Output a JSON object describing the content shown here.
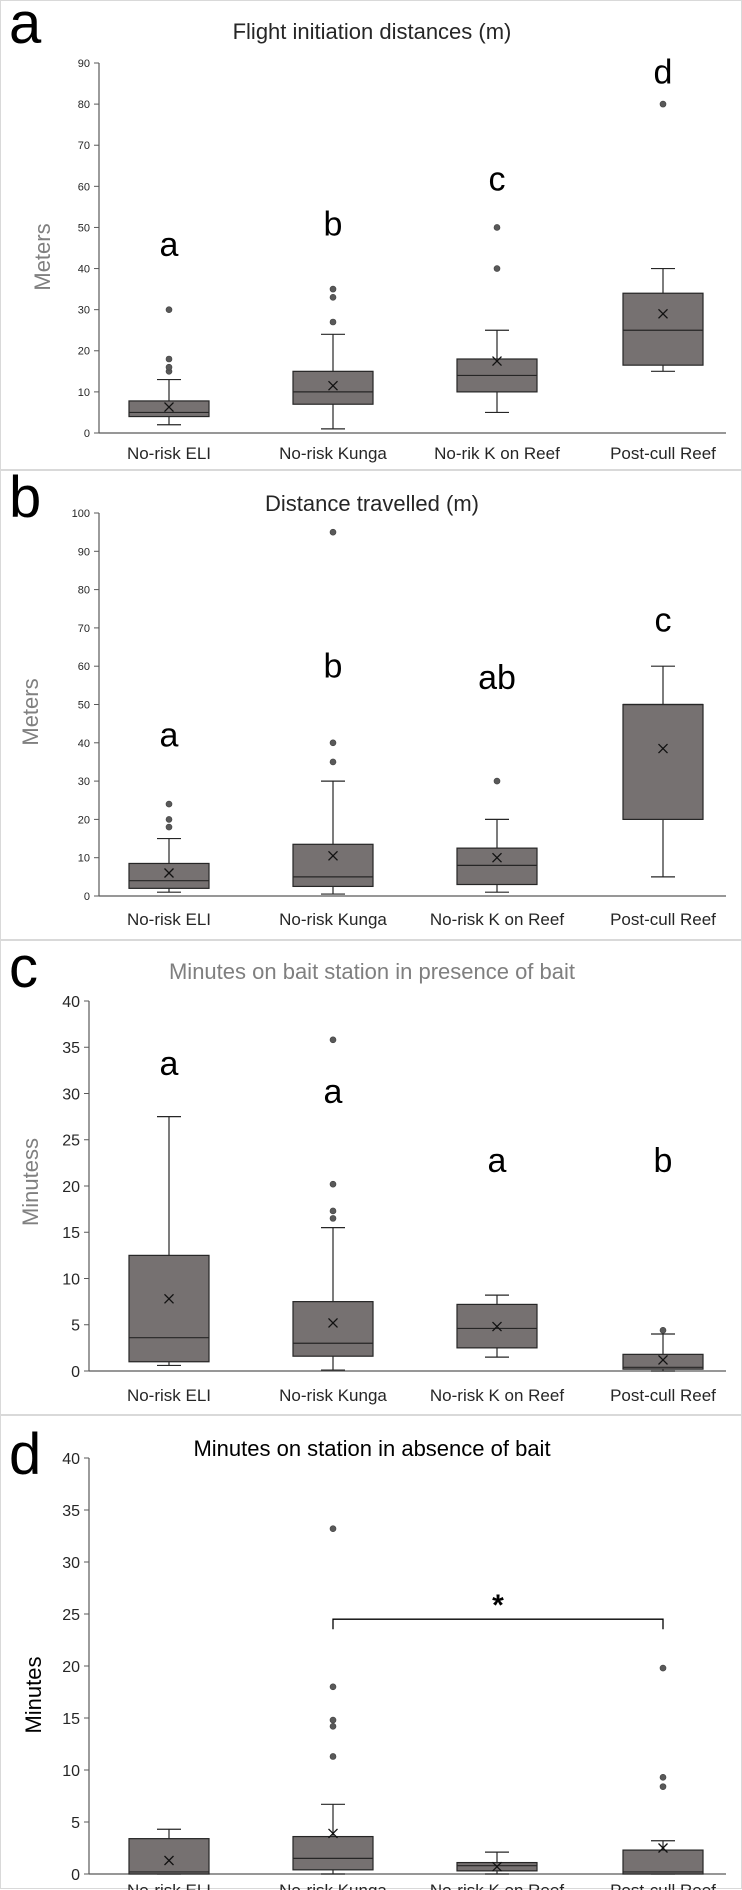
{
  "colors": {
    "box_fill": "#767171",
    "box_stroke": "#262626",
    "axis": "#595959",
    "text": "#262626",
    "title_gray": "#7f7f7f",
    "ytitle_gray": "#808080",
    "outlier": "#595959"
  },
  "chart_data": [
    {
      "panel": "a",
      "type": "boxplot",
      "title": "Flight initiation distances (m)",
      "ylabel": "Meters",
      "ylim": [
        0,
        90
      ],
      "yticks": [
        0,
        10,
        20,
        30,
        40,
        50,
        60,
        70,
        80,
        90
      ],
      "categories": [
        "No-risk ELI",
        "No-risk Kunga",
        "No-rik K on Reef",
        "Post-cull Reef"
      ],
      "boxes": [
        {
          "whisker_low": 2,
          "q1": 4,
          "median": 5,
          "q3": 7.8,
          "whisker_high": 13,
          "mean": 6.3,
          "outliers": [
            15,
            16,
            18,
            30
          ]
        },
        {
          "whisker_low": 1,
          "q1": 7,
          "median": 10,
          "q3": 15,
          "whisker_high": 24,
          "mean": 11.5,
          "outliers": [
            27,
            33,
            35
          ]
        },
        {
          "whisker_low": 5,
          "q1": 10,
          "median": 14,
          "q3": 18,
          "whisker_high": 25,
          "mean": 17.5,
          "outliers": [
            40,
            50
          ]
        },
        {
          "whisker_low": 15,
          "q1": 16.5,
          "median": 25,
          "q3": 34,
          "whisker_high": 40,
          "mean": 29,
          "outliers": [
            80
          ]
        }
      ],
      "annotations": [
        {
          "text": "a",
          "x": 0,
          "y": 43
        },
        {
          "text": "b",
          "x": 1,
          "y": 48
        },
        {
          "text": "c",
          "x": 2,
          "y": 59
        },
        {
          "text": "d",
          "x": 3,
          "y": 85
        }
      ]
    },
    {
      "panel": "b",
      "type": "boxplot",
      "title": "Distance travelled (m)",
      "ylabel": "Meters",
      "ylim": [
        0,
        100
      ],
      "yticks": [
        0,
        10,
        20,
        30,
        40,
        50,
        60,
        70,
        80,
        90,
        100
      ],
      "categories": [
        "No-risk ELI",
        "No-risk Kunga",
        "No-risk K on Reef",
        "Post-cull Reef"
      ],
      "boxes": [
        {
          "whisker_low": 1,
          "q1": 2,
          "median": 4,
          "q3": 8.5,
          "whisker_high": 15,
          "mean": 6,
          "outliers": [
            18,
            20,
            24
          ]
        },
        {
          "whisker_low": 0.5,
          "q1": 2.5,
          "median": 5,
          "q3": 13.5,
          "whisker_high": 30,
          "mean": 10.5,
          "outliers": [
            35,
            40,
            95
          ]
        },
        {
          "whisker_low": 1,
          "q1": 3,
          "median": 8,
          "q3": 12.5,
          "whisker_high": 20,
          "mean": 10,
          "outliers": [
            30
          ]
        },
        {
          "whisker_low": 5,
          "q1": 20,
          "median": 50,
          "q3": 50,
          "whisker_high": 60,
          "mean": 38.5,
          "outliers": []
        }
      ],
      "annotations": [
        {
          "text": "a",
          "x": 0,
          "y": 39
        },
        {
          "text": "b",
          "x": 1,
          "y": 57
        },
        {
          "text": "ab",
          "x": 2,
          "y": 54
        },
        {
          "text": "c",
          "x": 3,
          "y": 69
        }
      ]
    },
    {
      "panel": "c",
      "type": "boxplot",
      "title": "Minutes on bait station in presence of bait",
      "ylabel": "Minutess",
      "ylim": [
        0,
        40
      ],
      "yticks": [
        0,
        5,
        10,
        15,
        20,
        25,
        30,
        35,
        40
      ],
      "categories": [
        "No-risk ELI",
        "No-risk Kunga",
        "No-risk K on Reef",
        "Post-cull Reef"
      ],
      "boxes": [
        {
          "whisker_low": 0.6,
          "q1": 1,
          "median": 3.6,
          "q3": 12.5,
          "whisker_high": 27.5,
          "mean": 7.8,
          "outliers": []
        },
        {
          "whisker_low": 0.1,
          "q1": 1.6,
          "median": 3,
          "q3": 7.5,
          "whisker_high": 15.5,
          "mean": 5.2,
          "outliers": [
            16.5,
            17.3,
            20.2,
            35.8
          ]
        },
        {
          "whisker_low": 1.5,
          "q1": 2.5,
          "median": 4.6,
          "q3": 7.2,
          "whisker_high": 8.2,
          "mean": 4.8,
          "outliers": []
        },
        {
          "whisker_low": 0,
          "q1": 0.2,
          "median": 0.4,
          "q3": 1.8,
          "whisker_high": 4,
          "mean": 1.2,
          "outliers": [
            4.4
          ]
        }
      ],
      "annotations": [
        {
          "text": "a",
          "x": 0,
          "y": 32
        },
        {
          "text": "a",
          "x": 1,
          "y": 29
        },
        {
          "text": "a",
          "x": 2,
          "y": 21.5
        },
        {
          "text": "b",
          "x": 3,
          "y": 21.5
        }
      ]
    },
    {
      "panel": "d",
      "type": "boxplot",
      "title": "Minutes on station in absence of bait",
      "ylabel": "Minutes",
      "ylim": [
        0,
        40
      ],
      "yticks": [
        0,
        5,
        10,
        15,
        20,
        25,
        30,
        35,
        40
      ],
      "categories": [
        "No-risk ELI",
        "No-risk Kunga",
        "No-risk K on Reef",
        "Post-cull Reef"
      ],
      "boxes": [
        {
          "whisker_low": 0,
          "q1": 0,
          "median": 0.2,
          "q3": 3.4,
          "whisker_high": 4.3,
          "mean": 1.3,
          "outliers": []
        },
        {
          "whisker_low": 0,
          "q1": 0.4,
          "median": 1.5,
          "q3": 3.6,
          "whisker_high": 6.7,
          "mean": 3.9,
          "outliers": [
            11.3,
            14.2,
            14.8,
            18,
            33.2
          ]
        },
        {
          "whisker_low": 0,
          "q1": 0.3,
          "median": 0.8,
          "q3": 1.1,
          "whisker_high": 2.1,
          "mean": 0.7,
          "outliers": []
        },
        {
          "whisker_low": 0,
          "q1": 0,
          "median": 0.2,
          "q3": 2.3,
          "whisker_high": 3.2,
          "mean": 2.5,
          "outliers": [
            8.4,
            9.3,
            19.8
          ]
        }
      ],
      "bracket": {
        "from": 1,
        "to": 3,
        "y": 24.5,
        "label": "*"
      },
      "annotations": []
    }
  ]
}
